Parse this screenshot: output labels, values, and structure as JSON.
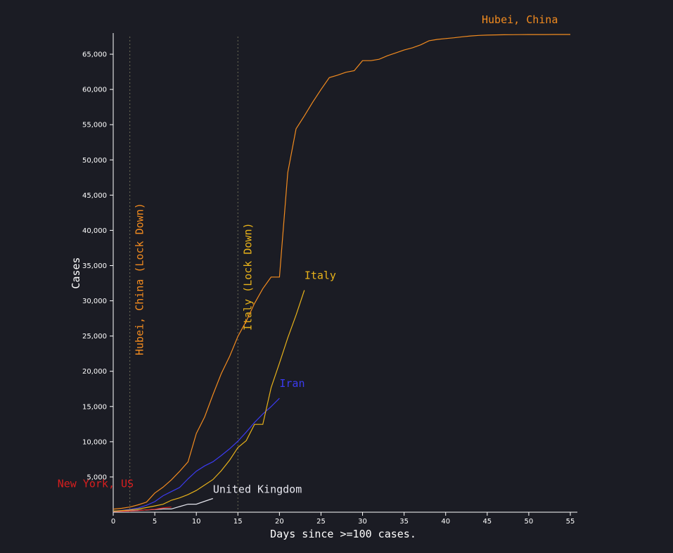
{
  "chart_data": {
    "type": "line",
    "xlabel": "Days since >=100 cases.",
    "ylabel": "Cases",
    "xlim": [
      0,
      55
    ],
    "ylim": [
      0,
      68000
    ],
    "x_ticks": [
      0,
      5,
      10,
      15,
      20,
      25,
      30,
      35,
      40,
      45,
      50,
      55
    ],
    "y_ticks": [
      5000,
      10000,
      15000,
      20000,
      25000,
      30000,
      35000,
      40000,
      45000,
      50000,
      55000,
      60000,
      65000
    ],
    "grid": false,
    "legend": "none",
    "series": [
      {
        "name": "Hubei, China",
        "color": "#f28b1f",
        "points": [
          [
            0,
            444
          ],
          [
            1,
            549
          ],
          [
            2,
            729
          ],
          [
            3,
            1052
          ],
          [
            4,
            1423
          ],
          [
            5,
            2714
          ],
          [
            6,
            3554
          ],
          [
            7,
            4586
          ],
          [
            8,
            5806
          ],
          [
            9,
            7153
          ],
          [
            10,
            11177
          ],
          [
            11,
            13522
          ],
          [
            12,
            16678
          ],
          [
            13,
            19665
          ],
          [
            14,
            22112
          ],
          [
            15,
            24953
          ],
          [
            16,
            27100
          ],
          [
            17,
            29631
          ],
          [
            18,
            31728
          ],
          [
            19,
            33366
          ],
          [
            20,
            33366
          ],
          [
            21,
            48206
          ],
          [
            22,
            54406
          ],
          [
            23,
            56249
          ],
          [
            24,
            58182
          ],
          [
            25,
            59989
          ],
          [
            26,
            61682
          ],
          [
            27,
            62031
          ],
          [
            28,
            62442
          ],
          [
            29,
            62662
          ],
          [
            30,
            64084
          ],
          [
            31,
            64084
          ],
          [
            32,
            64287
          ],
          [
            33,
            64786
          ],
          [
            34,
            65187
          ],
          [
            35,
            65596
          ],
          [
            36,
            65914
          ],
          [
            37,
            66337
          ],
          [
            38,
            66907
          ],
          [
            39,
            67103
          ],
          [
            40,
            67217
          ],
          [
            41,
            67332
          ],
          [
            42,
            67466
          ],
          [
            43,
            67592
          ],
          [
            44,
            67666
          ],
          [
            45,
            67707
          ],
          [
            46,
            67743
          ],
          [
            47,
            67760
          ],
          [
            48,
            67773
          ],
          [
            49,
            67781
          ],
          [
            50,
            67786
          ],
          [
            51,
            67790
          ],
          [
            52,
            67794
          ],
          [
            53,
            67798
          ],
          [
            54,
            67799
          ],
          [
            55,
            67800
          ]
        ]
      },
      {
        "name": "Italy",
        "color": "#e8b21a",
        "points": [
          [
            0,
            155
          ],
          [
            1,
            229
          ],
          [
            2,
            322
          ],
          [
            3,
            453
          ],
          [
            4,
            655
          ],
          [
            5,
            888
          ],
          [
            6,
            1128
          ],
          [
            7,
            1694
          ],
          [
            8,
            2036
          ],
          [
            9,
            2502
          ],
          [
            10,
            3089
          ],
          [
            11,
            3858
          ],
          [
            12,
            4636
          ],
          [
            13,
            5883
          ],
          [
            14,
            7375
          ],
          [
            15,
            9172
          ],
          [
            16,
            10149
          ],
          [
            17,
            12462
          ],
          [
            18,
            12462
          ],
          [
            19,
            17660
          ],
          [
            20,
            21157
          ],
          [
            21,
            24747
          ],
          [
            22,
            27980
          ],
          [
            23,
            31506
          ]
        ]
      },
      {
        "name": "Iran",
        "color": "#3b3bf0",
        "points": [
          [
            0,
            139
          ],
          [
            1,
            245
          ],
          [
            2,
            388
          ],
          [
            3,
            593
          ],
          [
            4,
            978
          ],
          [
            5,
            1501
          ],
          [
            6,
            2336
          ],
          [
            7,
            2922
          ],
          [
            8,
            3513
          ],
          [
            9,
            4747
          ],
          [
            10,
            5823
          ],
          [
            11,
            6566
          ],
          [
            12,
            7161
          ],
          [
            13,
            8042
          ],
          [
            14,
            9000
          ],
          [
            15,
            10075
          ],
          [
            16,
            11364
          ],
          [
            17,
            12729
          ],
          [
            18,
            13938
          ],
          [
            19,
            14991
          ],
          [
            20,
            16169
          ]
        ]
      },
      {
        "name": "New York, US",
        "color": "#d81e1e",
        "points": [
          [
            0,
            105
          ],
          [
            1,
            142
          ],
          [
            2,
            173
          ],
          [
            3,
            220
          ],
          [
            4,
            328
          ],
          [
            5,
            421
          ],
          [
            6,
            613
          ],
          [
            7,
            729
          ]
        ]
      },
      {
        "name": "United Kingdom",
        "color": "#e6e6ee",
        "points": [
          [
            0,
            115
          ],
          [
            1,
            163
          ],
          [
            2,
            206
          ],
          [
            3,
            273
          ],
          [
            4,
            321
          ],
          [
            5,
            382
          ],
          [
            6,
            456
          ],
          [
            7,
            456
          ],
          [
            8,
            798
          ],
          [
            9,
            1140
          ],
          [
            10,
            1140
          ],
          [
            11,
            1543
          ],
          [
            12,
            1950
          ]
        ]
      }
    ],
    "annotations": [
      {
        "label": "Hubei, China (Lock Down)",
        "x": 2,
        "color": "#f28b1f"
      },
      {
        "label": "Italy (Lock Down)",
        "x": 15,
        "color": "#e8b21a"
      }
    ]
  }
}
